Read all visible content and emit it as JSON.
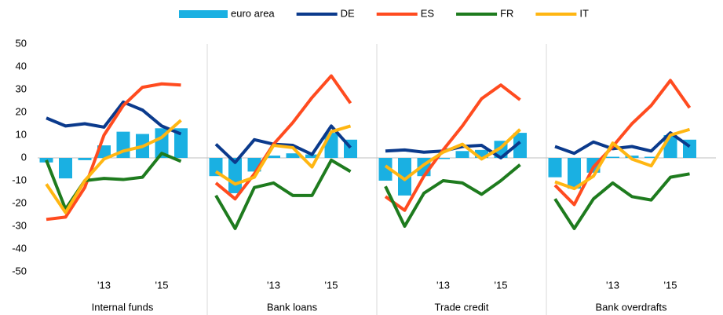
{
  "chart_data": {
    "type": "panel-bar-line",
    "ylim": [
      -50,
      50
    ],
    "yticks": [
      -50,
      -40,
      -30,
      -20,
      -10,
      0,
      10,
      20,
      30,
      40,
      50
    ],
    "grid": false,
    "legend": "top",
    "categories": [
      null,
      null,
      null,
      "'13",
      null,
      null,
      "'15",
      null
    ],
    "series": [
      {
        "name": "euro area",
        "color": "#1ab0e2",
        "mark": "bar"
      },
      {
        "name": "DE",
        "color": "#0b3a8c",
        "mark": "line"
      },
      {
        "name": "ES",
        "color": "#ff4b1f",
        "mark": "line"
      },
      {
        "name": "FR",
        "color": "#1e7b1e",
        "mark": "line"
      },
      {
        "name": "IT",
        "color": "#ffb612",
        "mark": "line"
      }
    ],
    "panels": [
      {
        "label": "Internal funds",
        "values": [
          [
            -2,
            -9,
            -1,
            5.5,
            11.5,
            10.5,
            13,
            13
          ],
          [
            17.5,
            14,
            15,
            13.5,
            24.5,
            21,
            14,
            10.5
          ],
          [
            -27,
            -26,
            -13,
            10,
            23,
            31,
            32.5,
            32
          ],
          [
            -1,
            -22.5,
            -10,
            -9,
            -9.5,
            -8.5,
            2,
            -1.5
          ],
          [
            -11.5,
            -24,
            -10,
            -0.5,
            3,
            5,
            9,
            16.5
          ]
        ]
      },
      {
        "label": "Bank loans",
        "values": [
          [
            -8,
            -15.5,
            -6,
            1,
            2,
            1.5,
            11,
            8
          ],
          [
            6,
            -2,
            8,
            6,
            5.5,
            1.5,
            14,
            4.5
          ],
          [
            -11,
            -18,
            -7,
            6,
            15.5,
            26.5,
            36,
            24
          ],
          [
            -16.5,
            -31,
            -13,
            -11,
            -16.5,
            -16.5,
            -1,
            -6
          ],
          [
            -6,
            -11.5,
            -8.5,
            5.5,
            4.5,
            -4,
            11.5,
            14
          ]
        ]
      },
      {
        "label": "Trade credit",
        "values": [
          [
            -10,
            -16.5,
            -8,
            -0.5,
            3,
            3.5,
            7.5,
            11
          ],
          [
            3,
            3.5,
            2.5,
            3,
            5,
            5.5,
            0,
            7
          ],
          [
            -17,
            -23,
            -8,
            3.5,
            14,
            26,
            32,
            25.5
          ],
          [
            -12.5,
            -30,
            -15.5,
            -10,
            -11,
            -16,
            -10,
            -3
          ],
          [
            -3.5,
            -9.5,
            -3,
            2.5,
            6,
            -0.5,
            4.5,
            12.5
          ]
        ]
      },
      {
        "label": "Bank overdrafts",
        "values": [
          [
            -8.5,
            -13.5,
            -6.5,
            0.5,
            1,
            0.5,
            10,
            8
          ],
          [
            5,
            2,
            7,
            4,
            5,
            3,
            11,
            5
          ],
          [
            -12,
            -20.5,
            -4,
            5,
            15,
            23,
            34,
            22
          ],
          [
            -18,
            -31,
            -18,
            -11,
            -17,
            -18.5,
            -8.5,
            -7
          ],
          [
            -10.5,
            -13.5,
            -8,
            6.5,
            -0.5,
            -3.5,
            10,
            12.5
          ]
        ]
      }
    ]
  }
}
